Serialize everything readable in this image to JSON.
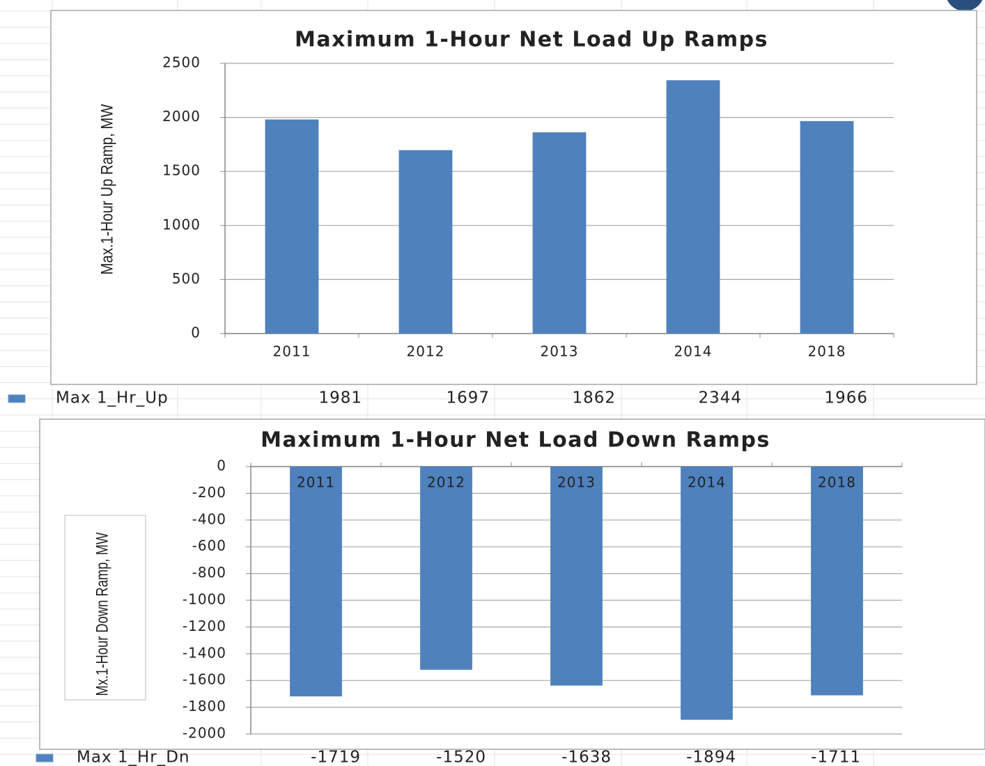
{
  "chart_data": [
    {
      "type": "bar",
      "title": "Maximum 1-Hour Net Load Up Ramps",
      "y_label": "Max.1-Hour Up Ramp, MW",
      "categories": [
        "2011",
        "2012",
        "2013",
        "2014",
        "2018"
      ],
      "series": [
        {
          "name": "Max 1_Hr_Up",
          "color": "#4f81bd",
          "values": [
            1981,
            1697,
            1862,
            2344,
            1966
          ]
        }
      ],
      "ylim": [
        0,
        2500
      ],
      "yticks": [
        0,
        500,
        1000,
        1500,
        2000,
        2500
      ],
      "grid": true
    },
    {
      "type": "bar",
      "title": "Maximum 1-Hour Net Load Down Ramps",
      "y_label": "Mx.1-Hour Down Ramp, MW",
      "categories": [
        "2011",
        "2012",
        "2013",
        "2014",
        "2018"
      ],
      "series": [
        {
          "name": "Max 1_Hr_Dn",
          "color": "#4f81bd",
          "values": [
            -1719,
            -1520,
            -1638,
            -1894,
            -1711
          ]
        }
      ],
      "ylim": [
        -2000,
        0
      ],
      "yticks": [
        -2000,
        -1800,
        -1600,
        -1400,
        -1200,
        -1000,
        -800,
        -600,
        -400,
        -200,
        0
      ],
      "grid": true
    }
  ]
}
